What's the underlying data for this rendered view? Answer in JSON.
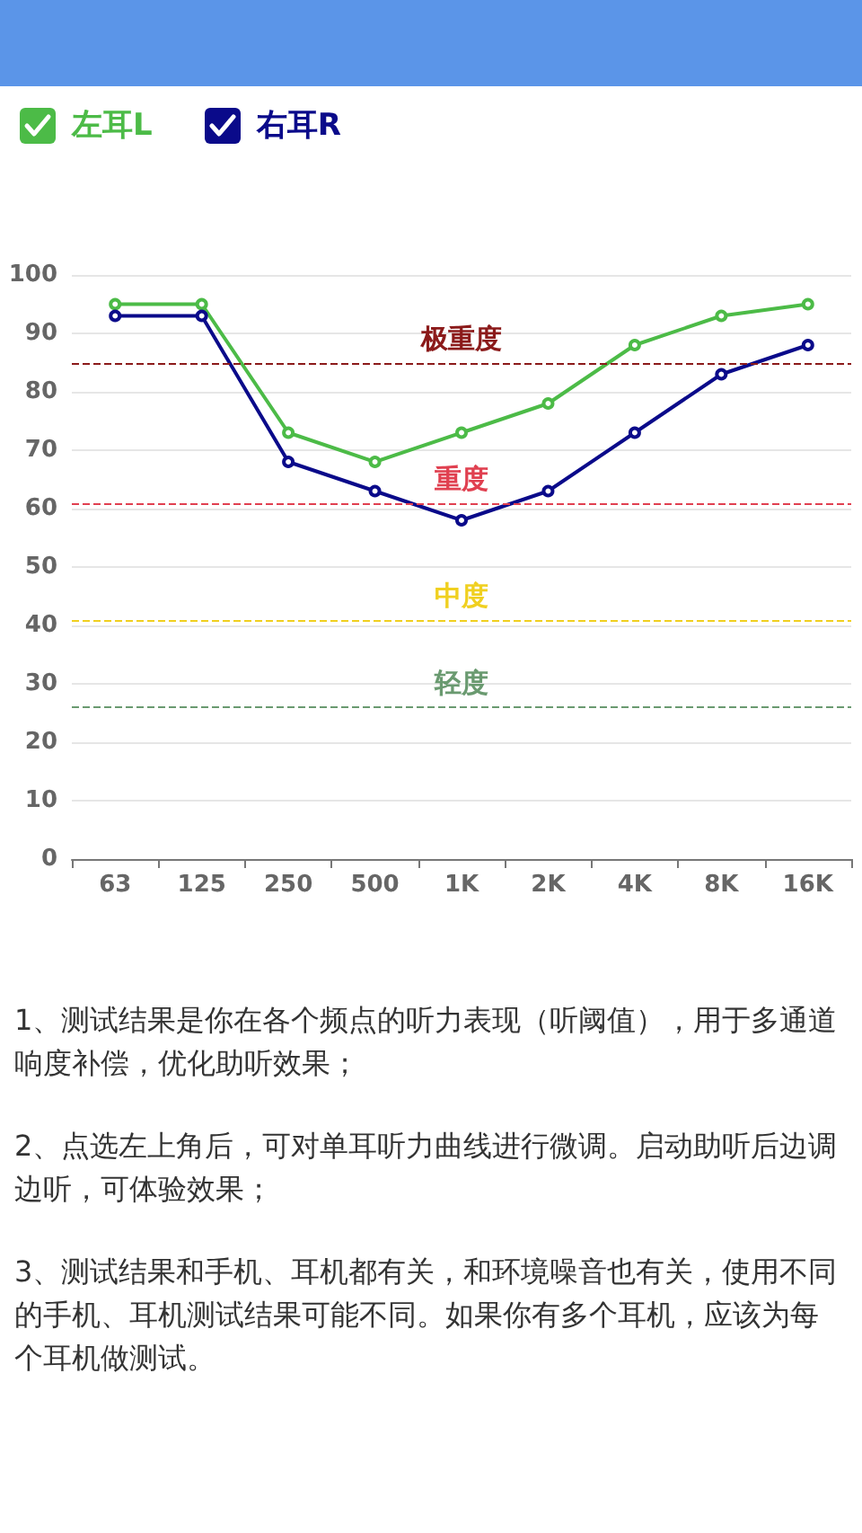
{
  "chart_data": {
    "type": "line",
    "categories": [
      "63",
      "125",
      "250",
      "500",
      "1K",
      "2K",
      "4K",
      "8K",
      "16K"
    ],
    "series": [
      {
        "name": "左耳L",
        "color": "#4cbb47",
        "values": [
          95,
          95,
          73,
          68,
          73,
          78,
          88,
          93,
          95
        ]
      },
      {
        "name": "右耳R",
        "color": "#0a0a8a",
        "values": [
          93,
          93,
          68,
          63,
          58,
          63,
          73,
          83,
          88
        ]
      }
    ],
    "ylim": [
      0,
      100
    ],
    "yticks": [
      0,
      10,
      20,
      30,
      40,
      50,
      60,
      70,
      80,
      90,
      100
    ],
    "grid": "y",
    "legend": "top left",
    "marker": "circle",
    "line_style": "solid",
    "ref_lines": [
      {
        "axis": "y",
        "value": 85,
        "label": "极重度",
        "color": "#8b1a1a",
        "line_style": "dashed"
      },
      {
        "axis": "y",
        "value": 61,
        "label": "重度",
        "color": "#e04050",
        "line_style": "dashed"
      },
      {
        "axis": "y",
        "value": 41,
        "label": "中度",
        "color": "#f0d020",
        "line_style": "dashed"
      },
      {
        "axis": "y",
        "value": 26,
        "label": "轻度",
        "color": "#6a9a70",
        "line_style": "dashed"
      }
    ],
    "annotations": [
      "1、测试结果是你在各个频点的听力表现（听阈值），用于多通道响度补偿，优化助听效果；",
      "2、点选左上角后，可对单耳听力曲线进行微调。启动助听后边调边听，可体验效果；",
      "3、测试结果和手机、耳机都有关，和环境噪音也有关，使用不同的手机、耳机测试结果可能不同。如果你有多个耳机，应该为每个耳机做测试。"
    ]
  }
}
